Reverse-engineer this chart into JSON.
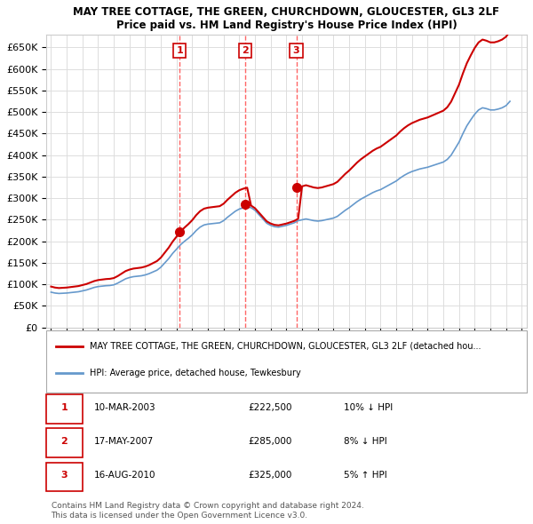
{
  "title1": "MAY TREE COTTAGE, THE GREEN, CHURCHDOWN, GLOUCESTER, GL3 2LF",
  "title2": "Price paid vs. HM Land Registry's House Price Index (HPI)",
  "background_color": "#ffffff",
  "grid_color": "#dddddd",
  "sale_color": "#cc0000",
  "hpi_color": "#6699cc",
  "vline_color": "#ff6666",
  "ylim_min": 0,
  "ylim_max": 680000,
  "yticks": [
    0,
    50000,
    100000,
    150000,
    200000,
    250000,
    300000,
    350000,
    400000,
    450000,
    500000,
    550000,
    600000,
    650000
  ],
  "ytick_labels": [
    "£0",
    "£50K",
    "£100K",
    "£150K",
    "£200K",
    "£250K",
    "£300K",
    "£350K",
    "£400K",
    "£450K",
    "£500K",
    "£550K",
    "£600K",
    "£650K"
  ],
  "sales": [
    {
      "year": 2003.19,
      "price": 222500,
      "label": "1"
    },
    {
      "year": 2007.38,
      "price": 285000,
      "label": "2"
    },
    {
      "year": 2010.63,
      "price": 325000,
      "label": "3"
    }
  ],
  "legend_sale": "MAY TREE COTTAGE, THE GREEN, CHURCHDOWN, GLOUCESTER, GL3 2LF (detached hou...",
  "legend_hpi": "HPI: Average price, detached house, Tewkesbury",
  "table_rows": [
    {
      "num": "1",
      "date": "10-MAR-2003",
      "price": "£222,500",
      "rel": "10% ↓ HPI"
    },
    {
      "num": "2",
      "date": "17-MAY-2007",
      "price": "£285,000",
      "rel": "8% ↓ HPI"
    },
    {
      "num": "3",
      "date": "16-AUG-2010",
      "price": "£325,000",
      "rel": "5% ↑ HPI"
    }
  ],
  "footer": "Contains HM Land Registry data © Crown copyright and database right 2024.\nThis data is licensed under the Open Government Licence v3.0.",
  "hpi_years": [
    1995.0,
    1995.25,
    1995.5,
    1995.75,
    1996.0,
    1996.25,
    1996.5,
    1996.75,
    1997.0,
    1997.25,
    1997.5,
    1997.75,
    1998.0,
    1998.25,
    1998.5,
    1998.75,
    1999.0,
    1999.25,
    1999.5,
    1999.75,
    2000.0,
    2000.25,
    2000.5,
    2000.75,
    2001.0,
    2001.25,
    2001.5,
    2001.75,
    2002.0,
    2002.25,
    2002.5,
    2002.75,
    2003.0,
    2003.25,
    2003.5,
    2003.75,
    2004.0,
    2004.25,
    2004.5,
    2004.75,
    2005.0,
    2005.25,
    2005.5,
    2005.75,
    2006.0,
    2006.25,
    2006.5,
    2006.75,
    2007.0,
    2007.25,
    2007.5,
    2007.75,
    2008.0,
    2008.25,
    2008.5,
    2008.75,
    2009.0,
    2009.25,
    2009.5,
    2009.75,
    2010.0,
    2010.25,
    2010.5,
    2010.75,
    2011.0,
    2011.25,
    2011.5,
    2011.75,
    2012.0,
    2012.25,
    2012.5,
    2012.75,
    2013.0,
    2013.25,
    2013.5,
    2013.75,
    2014.0,
    2014.25,
    2014.5,
    2014.75,
    2015.0,
    2015.25,
    2015.5,
    2015.75,
    2016.0,
    2016.25,
    2016.5,
    2016.75,
    2017.0,
    2017.25,
    2017.5,
    2017.75,
    2018.0,
    2018.25,
    2018.5,
    2018.75,
    2019.0,
    2019.25,
    2019.5,
    2019.75,
    2020.0,
    2020.25,
    2020.5,
    2020.75,
    2021.0,
    2021.25,
    2021.5,
    2021.75,
    2022.0,
    2022.25,
    2022.5,
    2022.75,
    2023.0,
    2023.25,
    2023.5,
    2023.75,
    2024.0,
    2024.25
  ],
  "hpi_values": [
    82000,
    80000,
    79000,
    79500,
    80000,
    81000,
    82000,
    83000,
    85000,
    87000,
    90000,
    93000,
    95000,
    96000,
    97000,
    97500,
    99000,
    103000,
    108000,
    113000,
    116000,
    118000,
    119000,
    120000,
    122000,
    125000,
    129000,
    133000,
    140000,
    150000,
    160000,
    172000,
    182000,
    192000,
    200000,
    207000,
    215000,
    225000,
    233000,
    238000,
    240000,
    241000,
    242000,
    243000,
    248000,
    256000,
    263000,
    270000,
    275000,
    278000,
    280000,
    278000,
    272000,
    262000,
    252000,
    242000,
    237000,
    234000,
    233000,
    235000,
    237000,
    240000,
    243000,
    248000,
    250000,
    252000,
    250000,
    248000,
    247000,
    248000,
    250000,
    252000,
    254000,
    258000,
    265000,
    272000,
    278000,
    285000,
    292000,
    298000,
    303000,
    308000,
    313000,
    317000,
    320000,
    325000,
    330000,
    335000,
    340000,
    347000,
    353000,
    358000,
    362000,
    365000,
    368000,
    370000,
    372000,
    375000,
    378000,
    381000,
    384000,
    390000,
    400000,
    415000,
    430000,
    450000,
    468000,
    482000,
    495000,
    505000,
    510000,
    508000,
    505000,
    505000,
    507000,
    510000,
    515000,
    525000
  ]
}
